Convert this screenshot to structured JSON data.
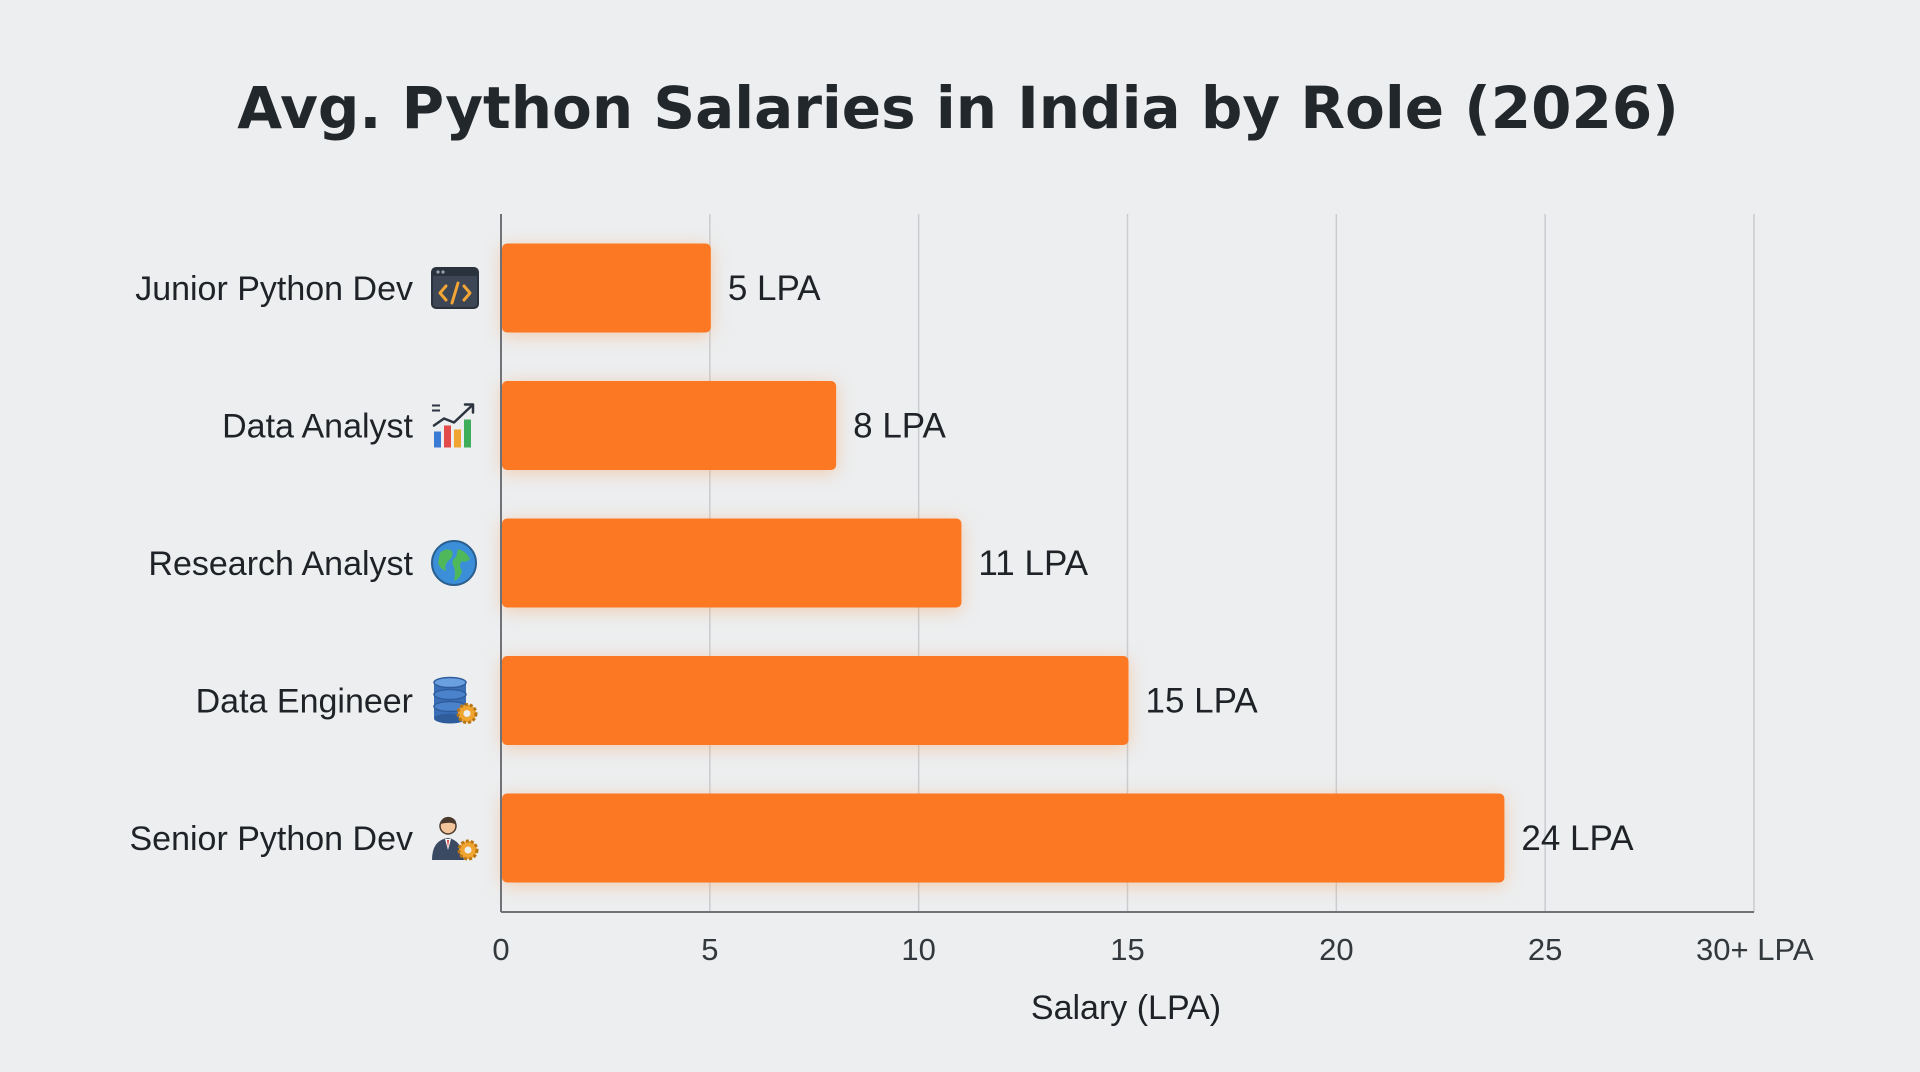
{
  "chart_data": {
    "type": "bar",
    "orientation": "horizontal",
    "title": "Avg. Python Salaries in India by Role (2026)",
    "xlabel": "Salary (LPA)",
    "ylabel": "",
    "categories": [
      "Junior Python Dev",
      "Data Analyst",
      "Research Analyst",
      "Data Engineer",
      "Senior Python Dev"
    ],
    "values": [
      5,
      8,
      11,
      15,
      24
    ],
    "value_labels": [
      "5 LPA",
      "8 LPA",
      "11 LPA",
      "15 LPA",
      "24 LPA"
    ],
    "category_icons": [
      "code-window-icon",
      "bar-chart-icon",
      "globe-icon",
      "database-gear-icon",
      "person-gear-icon"
    ],
    "xlim": [
      0,
      30
    ],
    "x_ticks": [
      0,
      5,
      10,
      15,
      20,
      25,
      30
    ],
    "x_tick_labels": [
      "0",
      "5",
      "10",
      "15",
      "20",
      "25",
      "30+ LPA"
    ],
    "grid": "vertical",
    "bar_color": "#fd7822",
    "background_color": "#eceef0"
  }
}
